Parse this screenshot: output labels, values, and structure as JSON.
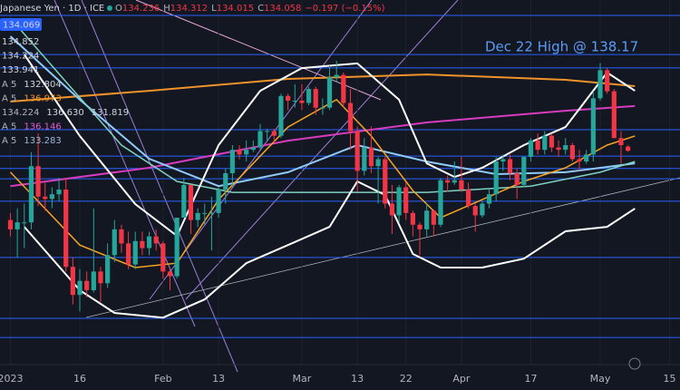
{
  "chart_data": {
    "type": "candlestick",
    "symbol": "Japanese Yen · 1D · ICE",
    "ohlc": [
      {
        "label": "O",
        "value": 134.236
      },
      {
        "label": "H",
        "value": 134.312
      },
      {
        "label": "L",
        "value": 134.015
      },
      {
        "label": "C",
        "value": 134.058
      }
    ],
    "change": "−0.197 (−0.15%)",
    "price_tag": "134.069",
    "indicator_labels": [
      {
        "color": "#d1d4dc",
        "texts": [
          "134.852"
        ]
      },
      {
        "color": "#d1d4dc",
        "texts": [
          "134.224"
        ]
      },
      {
        "color": "#d1d4dc",
        "texts": [
          "133.941"
        ]
      },
      {
        "color": "#d1d4dc",
        "texts": [
          "A 5",
          "132.804"
        ]
      },
      {
        "color": "#f0932b",
        "texts": [
          "A 5",
          "136.973"
        ]
      },
      {
        "color": "#d1d4dc",
        "texts": [
          "134.224",
          "136.630",
          "131.819"
        ]
      },
      {
        "color": "#e05bd0",
        "texts": [
          "A 5",
          "136.146"
        ]
      },
      {
        "color": "#9fb6d8",
        "texts": [
          "A 5",
          "133.283"
        ]
      }
    ],
    "annotation": "Dec 22 High @ 138.17",
    "xlim": [
      -1.5,
      96.5
    ],
    "ylim": [
      125,
      140.5
    ],
    "xticks": [
      {
        "value": 0,
        "label": "2023"
      },
      {
        "value": 10,
        "label": "16"
      },
      {
        "value": 22,
        "label": "Feb"
      },
      {
        "value": 30,
        "label": "13"
      },
      {
        "value": 42,
        "label": "Mar"
      },
      {
        "value": 50,
        "label": "13"
      },
      {
        "value": 57,
        "label": "22"
      },
      {
        "value": 65,
        "label": "Apr"
      },
      {
        "value": 75,
        "label": "17"
      },
      {
        "value": 85,
        "label": "May"
      },
      {
        "value": 95,
        "label": "15"
      }
    ],
    "up_color": "#26a69a",
    "down_color": "#f23645",
    "open": [
      131.1,
      130.7,
      131.0,
      131.0,
      133.4,
      132.1,
      132.0,
      132.2,
      132.4,
      129.1,
      127.9,
      128.5,
      128.1,
      128.9,
      128.4,
      129.6,
      130.7,
      130.1,
      129.2,
      130.2,
      129.9,
      130.4,
      130.1,
      128.9,
      128.7,
      131.2,
      132.6,
      131.1,
      131.4,
      131.4,
      131.4,
      132.4,
      133.1,
      134.1,
      133.9,
      134.1,
      134.2,
      134.9,
      134.9,
      134.7,
      136.4,
      136.2,
      136.2,
      136.1,
      136.7,
      135.9,
      135.9,
      137.2,
      137.3,
      136.1,
      134.9,
      133.2,
      134.2,
      133.4,
      133.7,
      131.8,
      131.3,
      132.5,
      131.4,
      130.9,
      130.7,
      131.5,
      130.9,
      132.8,
      132.7,
      132.8,
      132.4,
      131.7,
      131.3,
      131.8,
      132.2,
      133.6,
      133.7,
      133.1,
      132.6,
      133.8,
      134.5,
      134.1,
      134.7,
      134.2,
      134.1,
      134.3,
      133.7,
      133.6,
      133.9,
      136.3,
      137.5,
      136.6,
      134.6,
      134.236
    ],
    "high": [
      131.4,
      131.6,
      131.8,
      134.0,
      134.8,
      132.7,
      132.5,
      132.9,
      132.9,
      129.5,
      129.0,
      128.9,
      131.6,
      129.1,
      130.1,
      131.1,
      130.9,
      130.6,
      130.6,
      130.6,
      130.6,
      130.7,
      130.2,
      129.0,
      131.2,
      132.9,
      132.6,
      131.6,
      131.8,
      132.1,
      132.5,
      133.3,
      134.3,
      134.3,
      134.5,
      134.5,
      135.2,
      135.0,
      135.0,
      136.5,
      136.5,
      136.9,
      136.9,
      136.8,
      136.8,
      136.3,
      137.7,
      137.9,
      137.4,
      136.7,
      135.1,
      134.6,
      135.1,
      133.8,
      133.8,
      132.6,
      132.6,
      132.7,
      131.5,
      131.0,
      131.8,
      131.5,
      132.9,
      133.0,
      133.6,
      133.8,
      132.7,
      131.8,
      131.9,
      132.4,
      133.8,
      133.9,
      133.9,
      133.3,
      133.8,
      134.6,
      134.8,
      134.9,
      134.8,
      134.5,
      134.6,
      134.4,
      134.1,
      134.1,
      136.6,
      137.8,
      137.6,
      136.7,
      134.9,
      134.312
    ],
    "low": [
      130.4,
      129.5,
      129.9,
      130.7,
      131.7,
      131.5,
      131.6,
      131.9,
      128.9,
      127.5,
      127.2,
      127.8,
      128.0,
      127.6,
      128.2,
      129.3,
      129.7,
      129.0,
      129.0,
      129.6,
      129.6,
      129.8,
      128.6,
      128.1,
      128.6,
      131.2,
      130.5,
      130.8,
      130.9,
      129.8,
      131.2,
      131.8,
      132.5,
      133.7,
      133.6,
      134.0,
      134.1,
      134.5,
      134.4,
      134.6,
      135.8,
      135.9,
      135.8,
      136.0,
      135.6,
      135.6,
      135.8,
      137.0,
      135.9,
      134.1,
      132.3,
      133.0,
      133.1,
      131.8,
      131.6,
      130.5,
      131.0,
      131.1,
      130.4,
      129.6,
      130.4,
      130.4,
      130.8,
      132.3,
      132.6,
      132.3,
      131.6,
      130.6,
      131.2,
      131.6,
      131.9,
      133.2,
      132.8,
      132.0,
      132.5,
      133.6,
      133.9,
      133.9,
      134.0,
      133.8,
      133.9,
      133.6,
      133.2,
      133.5,
      133.6,
      136.2,
      136.5,
      134.6,
      133.5,
      134.015
    ],
    "close": [
      130.7,
      131.0,
      131.0,
      133.4,
      132.1,
      132.0,
      132.2,
      132.4,
      129.1,
      127.9,
      128.5,
      128.1,
      128.9,
      128.4,
      129.6,
      130.7,
      130.1,
      129.2,
      130.2,
      129.9,
      130.4,
      130.1,
      128.9,
      128.7,
      131.2,
      132.6,
      131.1,
      131.4,
      131.4,
      131.4,
      132.4,
      133.1,
      134.1,
      133.9,
      134.1,
      134.2,
      134.9,
      134.9,
      134.7,
      136.4,
      136.2,
      136.2,
      136.1,
      136.7,
      135.9,
      135.9,
      137.2,
      137.3,
      136.1,
      134.9,
      133.2,
      134.2,
      133.4,
      133.7,
      131.8,
      131.3,
      132.5,
      131.4,
      130.9,
      130.7,
      131.5,
      130.9,
      132.8,
      132.7,
      132.8,
      132.4,
      131.7,
      131.3,
      131.8,
      132.2,
      133.6,
      133.7,
      133.1,
      132.6,
      133.8,
      134.5,
      134.1,
      134.7,
      134.2,
      134.1,
      134.3,
      133.7,
      133.6,
      133.9,
      136.3,
      137.5,
      136.6,
      134.6,
      134.3,
      134.058
    ],
    "levels": {
      "color": "#2962ff",
      "values": [
        139.84,
        138.17,
        137.6,
        134.96,
        133.83,
        133.3,
        132.86,
        131.9,
        129.5,
        126.9,
        126.08
      ]
    },
    "overlays": [
      {
        "color": "#f0932b",
        "width": 2,
        "x": [
          0,
          20,
          40,
          60,
          80,
          90
        ],
        "values": [
          136.16,
          136.62,
          137.13,
          137.32,
          137.09,
          136.82
        ]
      },
      {
        "color": "#d63cbe",
        "width": 2,
        "x": [
          0,
          20,
          40,
          60,
          80,
          90
        ],
        "values": [
          132.55,
          133.33,
          134.49,
          135.27,
          135.77,
          135.97
        ]
      },
      {
        "color": "#90caf9",
        "width": 2,
        "x": [
          0,
          10,
          20,
          30,
          40,
          50,
          60,
          70,
          80,
          90
        ],
        "values": [
          138.95,
          136.24,
          133.72,
          132.55,
          133.14,
          134.3,
          133.6,
          133.06,
          133.14,
          133.52
        ]
      },
      {
        "color": "#7fd1c0",
        "width": 1.5,
        "x": [
          0,
          8,
          16,
          24,
          32,
          45,
          60,
          75,
          85,
          90
        ],
        "values": [
          139.72,
          137.01,
          134.3,
          132.75,
          132.28,
          132.28,
          132.28,
          132.55,
          133.14,
          133.6
        ]
      },
      {
        "color": "#f7a325",
        "width": 1.5,
        "x": [
          0,
          10,
          18,
          24,
          30,
          40,
          47,
          52,
          58,
          62,
          68,
          74,
          80,
          86,
          90
        ],
        "values": [
          133.14,
          130.03,
          129.07,
          129.26,
          131.97,
          135.07,
          136.24,
          134.69,
          132.36,
          131.2,
          131.97,
          132.75,
          133.33,
          134.3,
          134.69
        ]
      },
      {
        "color": "#ffffff",
        "width": 2,
        "x": [
          2,
          10,
          18,
          24,
          30,
          36,
          42,
          50,
          56,
          60,
          64,
          68,
          74,
          80,
          86,
          90
        ],
        "values": [
          138.17,
          134.69,
          131.78,
          130.42,
          134.3,
          136.62,
          137.59,
          137.79,
          136.24,
          133.52,
          132.94,
          133.33,
          134.3,
          135.07,
          137.4,
          136.62
        ]
      },
      {
        "color": "#ffffff",
        "width": 2,
        "x": [
          2,
          10,
          15,
          22,
          28,
          34,
          40,
          46,
          50,
          54,
          58,
          62,
          68,
          74,
          80,
          86,
          90
        ],
        "values": [
          130.81,
          128.1,
          127.13,
          126.93,
          127.71,
          129.26,
          130.03,
          130.81,
          132.75,
          132.17,
          129.65,
          129.07,
          129.07,
          129.45,
          130.62,
          130.81,
          131.59
        ]
      }
    ]
  }
}
